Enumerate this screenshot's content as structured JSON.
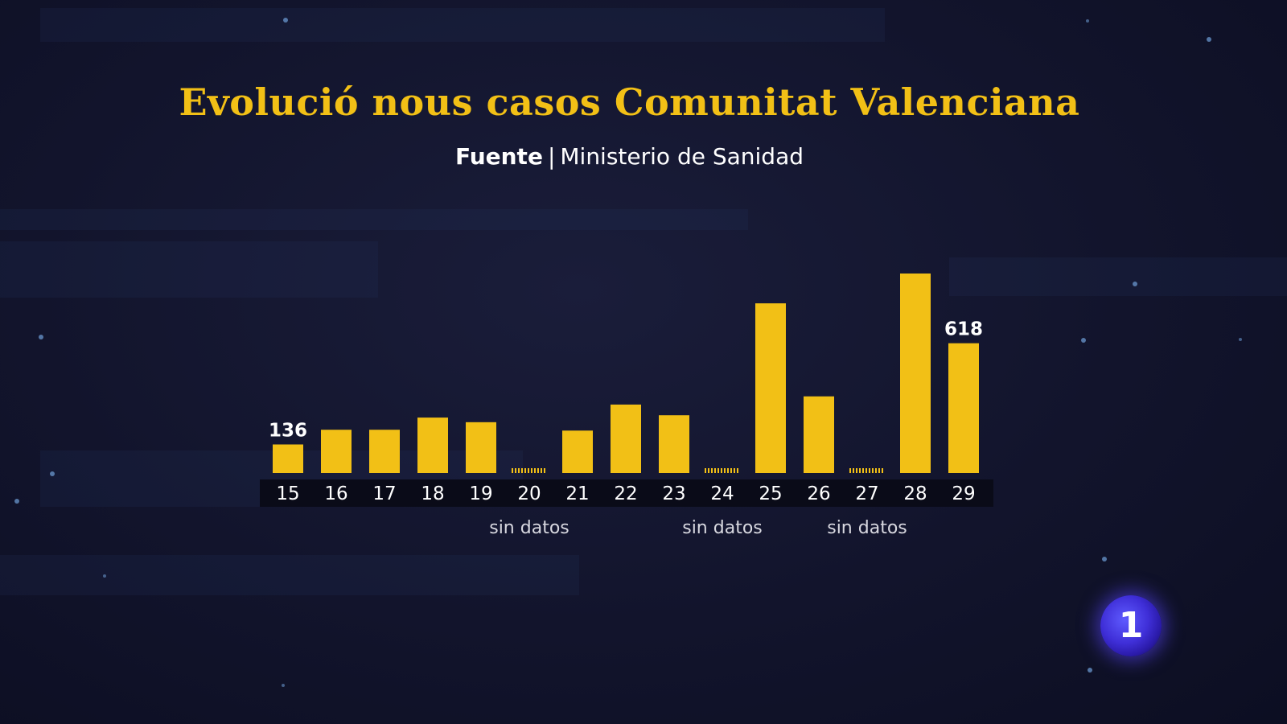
{
  "chart_data": {
    "type": "bar",
    "title": "Evolució nous casos Comunitat Valenciana",
    "source_label": "Fuente",
    "source": "Ministerio de Sanidad",
    "categories": [
      "15",
      "16",
      "17",
      "18",
      "19",
      "20",
      "21",
      "22",
      "23",
      "24",
      "25",
      "26",
      "27",
      "28",
      "29"
    ],
    "values": [
      136,
      206,
      206,
      264,
      242,
      null,
      202,
      326,
      275,
      null,
      808,
      365,
      null,
      950,
      618
    ],
    "data_labels": [
      {
        "category": "15",
        "text": "136"
      },
      {
        "category": "29",
        "text": "618"
      }
    ],
    "missing_label": "sin datos",
    "missing_categories": [
      "20",
      "24",
      "27"
    ],
    "ylim": [
      0,
      950
    ],
    "grid": false,
    "colors": {
      "bar": "#f2c016",
      "axis_strip": "#0a0b18",
      "tick_text": "#ffffff",
      "missing_text": "#d8d8e0",
      "title": "#f2c016"
    }
  },
  "logo": {
    "text": "1"
  }
}
